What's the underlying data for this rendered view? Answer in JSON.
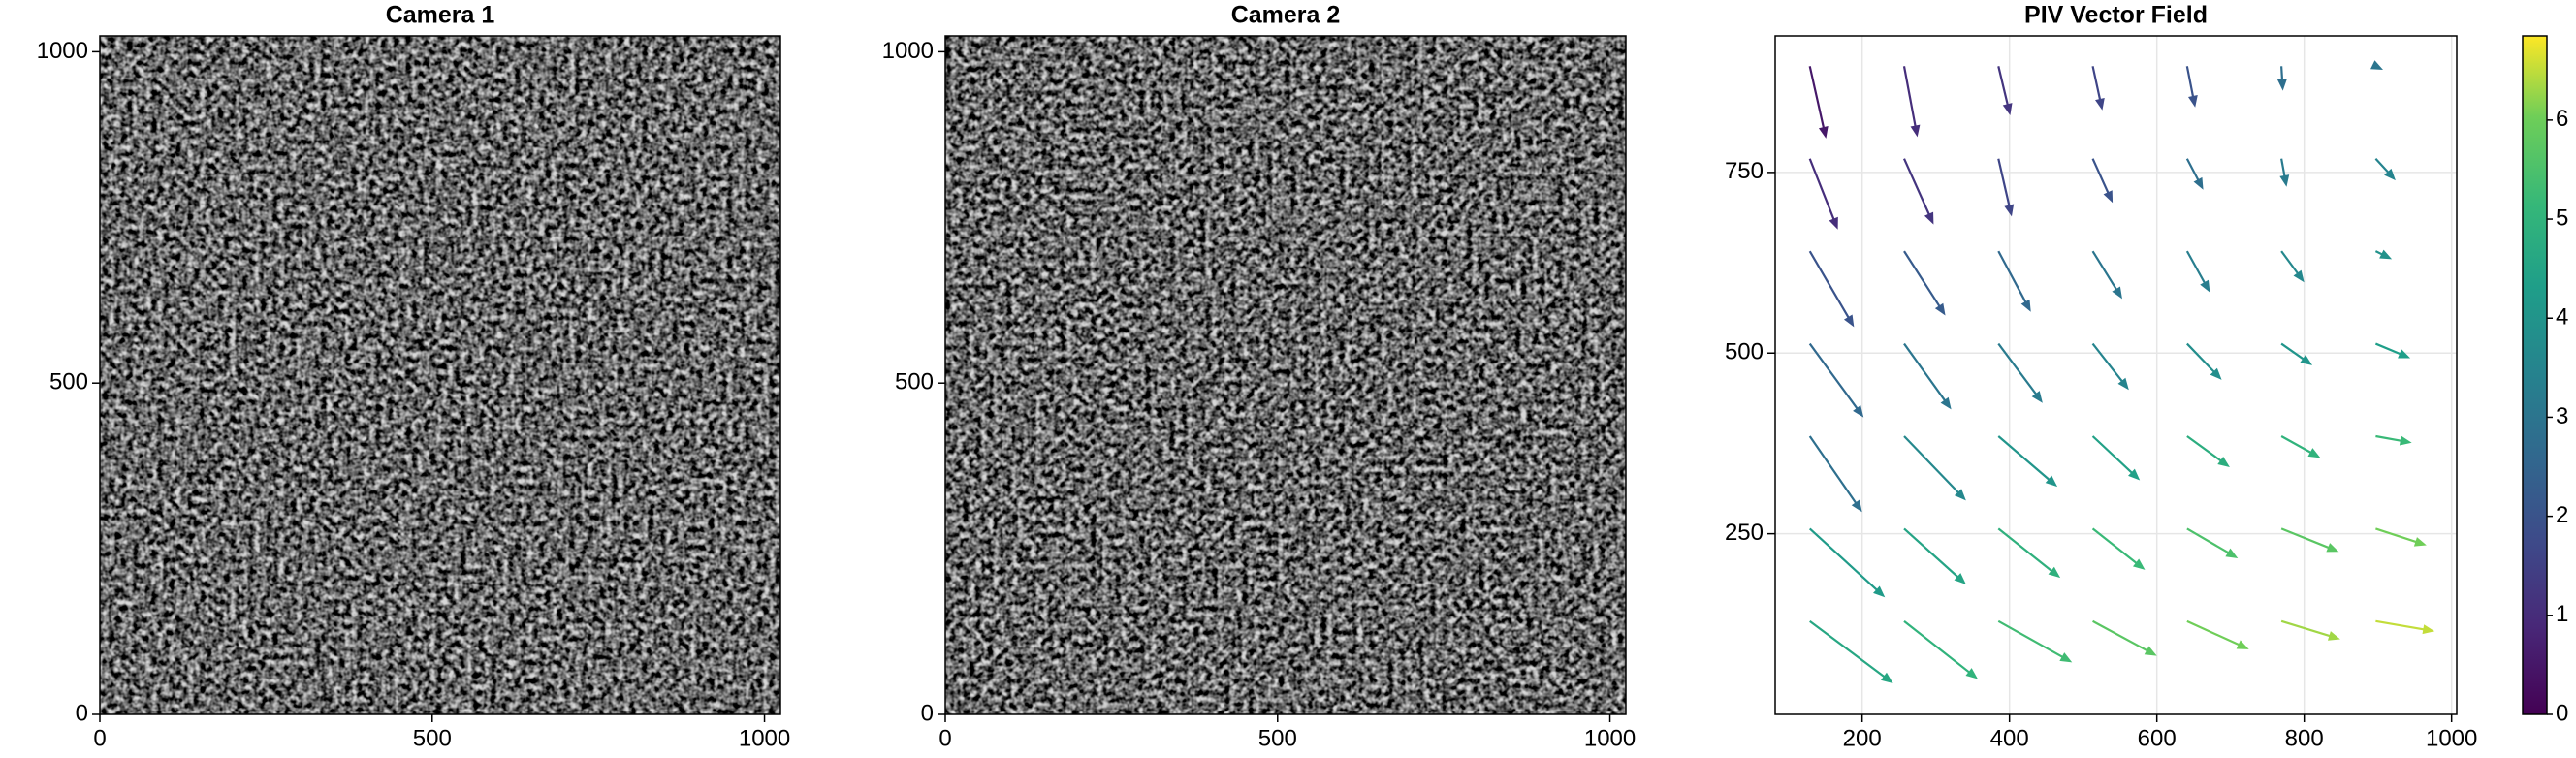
{
  "chart_data": [
    {
      "type": "image",
      "title": "Camera 1",
      "xlim": [
        0,
        1024
      ],
      "ylim": [
        0,
        1024
      ],
      "xticks": [
        0,
        500,
        1000
      ],
      "yticks": [
        0,
        500,
        1000
      ],
      "colormap": "gray"
    },
    {
      "type": "image",
      "title": "Camera 2",
      "xlim": [
        0,
        1024
      ],
      "ylim": [
        0,
        1024
      ],
      "xticks": [
        0,
        500,
        1000
      ],
      "yticks": [
        0,
        500,
        1000
      ],
      "colormap": "gray"
    },
    {
      "type": "quiver",
      "title": "PIV Vector Field",
      "xlim": [
        82,
        1007
      ],
      "ylim": [
        0,
        939
      ],
      "xticks": [
        200,
        400,
        600,
        800,
        1000
      ],
      "yticks": [
        250,
        500,
        750
      ],
      "grid": true,
      "colormap": "viridis",
      "clim": [
        0,
        6.85
      ],
      "cticks": [
        0,
        1,
        2,
        3,
        4,
        5,
        6
      ],
      "x": [
        129,
        257,
        385,
        513,
        641,
        769,
        897,
        129,
        257,
        385,
        513,
        641,
        769,
        897,
        129,
        257,
        385,
        513,
        641,
        769,
        897,
        129,
        257,
        385,
        513,
        641,
        769,
        897,
        129,
        257,
        385,
        513,
        641,
        769,
        897,
        129,
        257,
        385,
        513,
        641,
        769,
        897,
        129,
        257,
        385,
        513,
        641,
        769,
        897
      ],
      "y": [
        897,
        897,
        897,
        897,
        897,
        897,
        897,
        769,
        769,
        769,
        769,
        769,
        769,
        769,
        641,
        641,
        641,
        641,
        641,
        641,
        641,
        513,
        513,
        513,
        513,
        513,
        513,
        513,
        385,
        385,
        385,
        385,
        385,
        385,
        385,
        257,
        257,
        257,
        257,
        257,
        257,
        257,
        129,
        129,
        129,
        129,
        129,
        129,
        129
      ],
      "u": [
        22,
        18,
        16,
        13,
        11,
        2,
        10,
        38,
        40,
        18,
        27,
        22,
        7,
        27,
        60,
        56,
        44,
        40,
        31,
        31,
        22,
        73,
        64,
        60,
        49,
        47,
        42,
        47,
        71,
        84,
        80,
        64,
        58,
        53,
        49,
        102,
        84,
        84,
        71,
        69,
        78,
        69,
        113,
        100,
        100,
        87,
        84,
        80,
        80
      ],
      "v": [
        -100,
        -98,
        -68,
        -61,
        -57,
        -34,
        -5,
        -98,
        -91,
        -80,
        -61,
        -43,
        -39,
        -30,
        -105,
        -89,
        -84,
        -66,
        -57,
        -43,
        -11,
        -102,
        -91,
        -82,
        -64,
        -50,
        -30,
        -20,
        -105,
        -89,
        -70,
        -61,
        -43,
        -30,
        -9,
        -95,
        -77,
        -68,
        -57,
        -41,
        -32,
        -23,
        -86,
        -80,
        -57,
        -48,
        -39,
        -25,
        -14
      ],
      "c": [
        0.5,
        1.0,
        1.2,
        1.6,
        2.0,
        2.8,
        3.0,
        1.0,
        1.2,
        1.6,
        2.0,
        2.8,
        3.2,
        3.5,
        2.0,
        2.2,
        2.6,
        3.0,
        3.3,
        3.6,
        3.9,
        2.6,
        3.0,
        3.2,
        3.5,
        3.8,
        4.0,
        4.3,
        2.8,
        3.6,
        4.0,
        4.4,
        4.8,
        5.0,
        5.2,
        4.2,
        4.5,
        4.9,
        5.2,
        5.5,
        5.7,
        6.0,
        4.6,
        5.0,
        5.3,
        5.7,
        6.0,
        6.3,
        6.5
      ]
    }
  ]
}
